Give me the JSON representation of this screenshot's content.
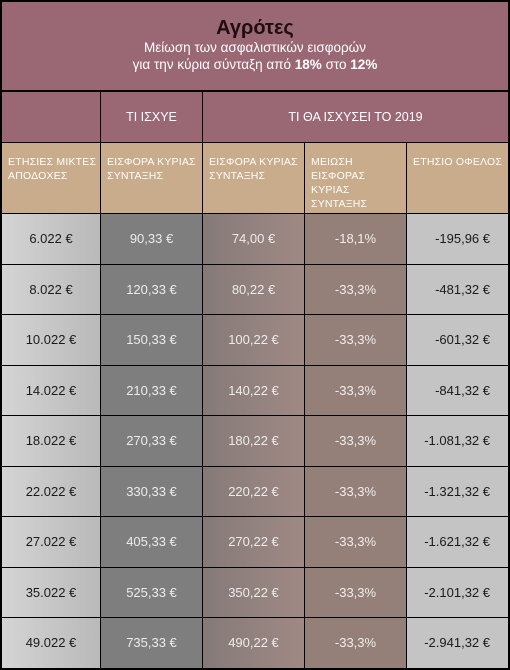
{
  "title": {
    "main": "Αγρότες",
    "line1": "Μείωση των ασφαλιστικών εισφορών",
    "line2_prefix": "για την κύρια σύνταξη από ",
    "line2_from": "18%",
    "line2_mid": " στο ",
    "line2_to": "12%"
  },
  "groups": {
    "empty": "",
    "current": "ΤΙ ΙΣΧΥΕ",
    "future": "ΤΙ ΘΑ ΙΣΧΥΣΕΙ ΤΟ 2019"
  },
  "headers": [
    "ΕΤΗΣΙΕΣ ΜΙΚΤΕΣ ΑΠΟΔΟΧΕΣ",
    "ΕΙΣΦΟΡΑ ΚΥΡΙΑΣ ΣΥΝΤΑΞΗΣ",
    "ΕΙΣΦΟΡΑ ΚΥΡΙΑΣ ΣΥΝΤΑΞΗΣ",
    "ΜΕΙΩΣΗ ΕΙΣΦΟΡΑΣ ΚΥΡΙΑΣ ΣΥΝΤΑΞΗΣ",
    "ΕΤΗΣΙΟ ΟΦΕΛΟΣ"
  ],
  "rows": [
    [
      "6.022 €",
      "90,33 €",
      "74,00 €",
      "-18,1%",
      "-195,96 €"
    ],
    [
      "8.022 €",
      "120,33 €",
      "80,22 €",
      "-33,3%",
      "-481,32 €"
    ],
    [
      "10.022 €",
      "150,33 €",
      "100,22 €",
      "-33,3%",
      "-601,32 €"
    ],
    [
      "14.022 €",
      "210,33 €",
      "140,22 €",
      "-33,3%",
      "-841,32 €"
    ],
    [
      "18.022 €",
      "270,33 €",
      "180,22 €",
      "-33,3%",
      "-1.081,32 €"
    ],
    [
      "22.022 €",
      "330,33 €",
      "220,22 €",
      "-33,3%",
      "-1.321,32 €"
    ],
    [
      "27.022 €",
      "405,33 €",
      "270,22 €",
      "-33,3%",
      "-1.621,32 €"
    ],
    [
      "35.022 €",
      "525,33 €",
      "350,22 €",
      "-33,3%",
      "-2.101,32 €"
    ],
    [
      "49.022 €",
      "735,33 €",
      "490,22 €",
      "-33,3%",
      "-2.941,32 €"
    ]
  ]
}
